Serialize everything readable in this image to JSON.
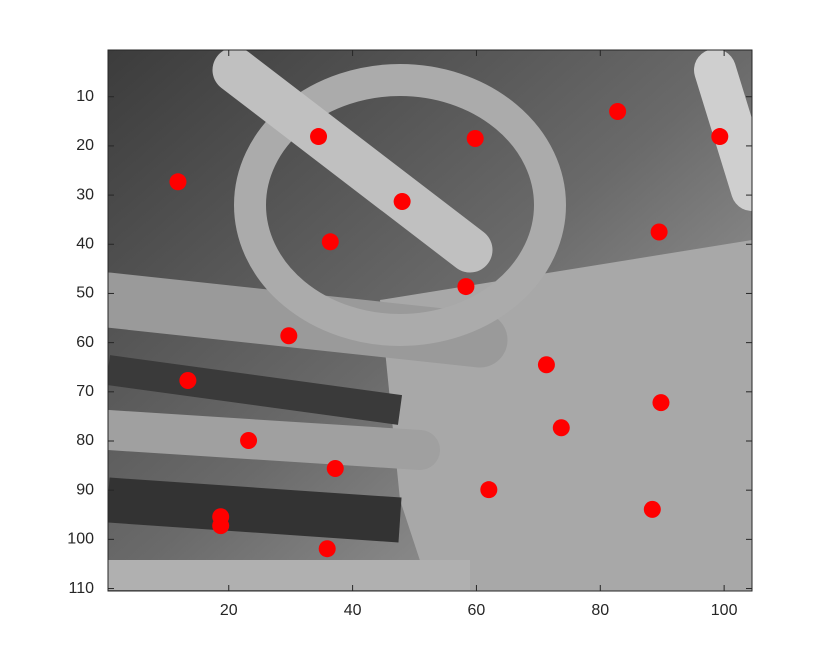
{
  "chart_data": {
    "type": "scatter",
    "x": [
      34.5,
      59.8,
      82.8,
      99.3,
      11.8,
      48.0,
      36.4,
      89.5,
      58.3,
      29.7,
      13.4,
      71.3,
      89.8,
      73.7,
      23.2,
      37.2,
      62.0,
      88.4,
      18.7,
      18.7,
      35.9
    ],
    "series": [
      {
        "color": "#ff0000",
        "values": [
          18.1,
          18.5,
          13.0,
          18.1,
          27.3,
          31.3,
          39.5,
          37.5,
          48.6,
          58.6,
          67.7,
          64.5,
          72.2,
          77.3,
          79.9,
          85.6,
          89.9,
          93.9,
          95.4,
          97.2,
          101.9
        ]
      }
    ],
    "xlim": [
      0.5,
      104.5
    ],
    "ylim": [
      0.5,
      110.5
    ],
    "y_reversed": true,
    "xticks": [
      20,
      40,
      60,
      80,
      100
    ],
    "yticks": [
      10,
      20,
      30,
      40,
      50,
      60,
      70,
      80,
      90,
      100,
      110
    ]
  }
}
